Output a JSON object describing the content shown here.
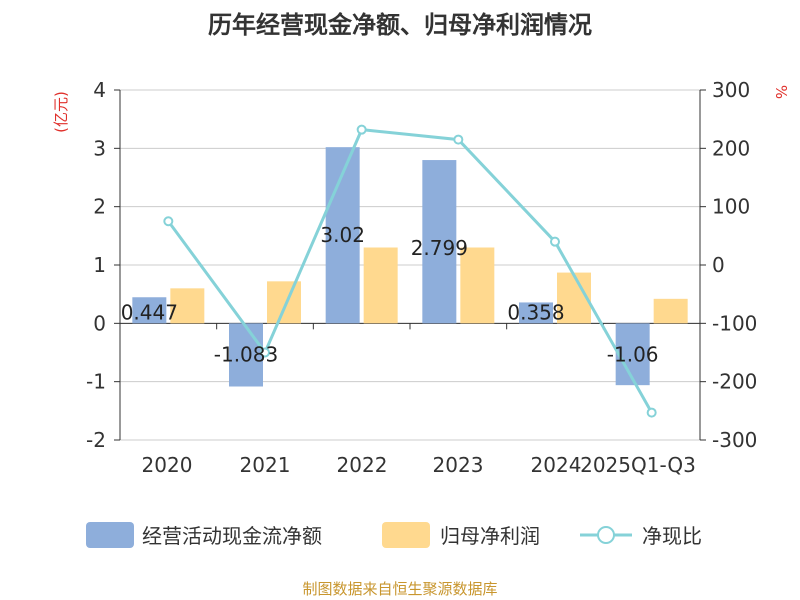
{
  "chart_data": {
    "type": "bar",
    "title": "历年经营现金净额、归母净利润情况",
    "categories": [
      "2020",
      "2021",
      "2022",
      "2023",
      "2024",
      "2025Q1-Q3"
    ],
    "series": [
      {
        "name": "经营活动现金流净额",
        "type": "bar",
        "axis": "left",
        "values": [
          0.447,
          -1.083,
          3.02,
          2.799,
          0.358,
          -1.06
        ],
        "color": "#8eaedb"
      },
      {
        "name": "归母净利润",
        "type": "bar",
        "axis": "left",
        "values": [
          0.6,
          0.72,
          1.3,
          1.3,
          0.87,
          0.42
        ],
        "color": "#ffd98f"
      },
      {
        "name": "净现比",
        "type": "line",
        "axis": "right",
        "values": [
          75,
          -150,
          232,
          215,
          40,
          -253
        ],
        "color": "#85d2d8"
      }
    ],
    "data_labels": [
      "0.447",
      "-1.083",
      "3.02",
      "2.799",
      "0.358",
      "-1.06"
    ],
    "y_left": {
      "label": "(亿元)",
      "lim": [
        -2,
        4
      ],
      "ticks": [
        "-2",
        "-1",
        "0",
        "1",
        "2",
        "3",
        "4"
      ]
    },
    "y_right": {
      "label": "%",
      "lim": [
        -300,
        300
      ],
      "ticks": [
        "-300",
        "-200",
        "-100",
        "0",
        "100",
        "200",
        "300"
      ]
    },
    "grid": true,
    "legend": "bottom",
    "source": "制图数据来自恒生聚源数据库",
    "colors": {
      "axis_unit": "#e0302b",
      "source": "#c8962e",
      "grid": "#cccccc",
      "axis": "#333333"
    }
  }
}
